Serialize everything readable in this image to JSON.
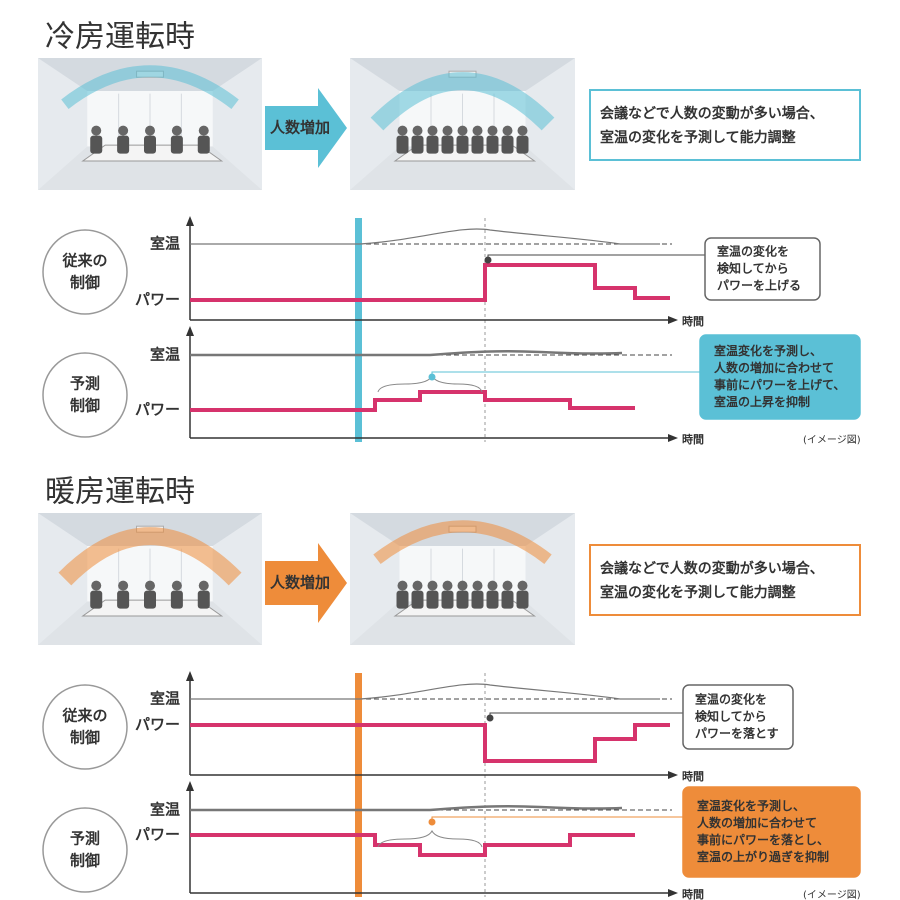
{
  "sections": [
    {
      "title": "冷房運転時",
      "accent": "#5bc0d6",
      "arrow_label": "人数増加",
      "callout": [
        "会議などで人数の変動が多い場合、",
        "室温の変化を予測して能力調整"
      ],
      "conventional": {
        "label": [
          "従来の",
          "制御"
        ],
        "temp": "室温",
        "power": "パワー",
        "note": [
          "室温の変化を",
          "検知してから",
          "パワーを上げる"
        ],
        "time": "時間"
      },
      "predictive": {
        "label": [
          "予測",
          "制御"
        ],
        "temp": "室温",
        "power": "パワー",
        "note": [
          "室温変化を予測し、",
          "人数の増加に合わせて",
          "事前にパワーを上げて、",
          "室温の上昇を抑制"
        ],
        "time": "時間"
      },
      "image_note": "(イメージ図)"
    },
    {
      "title": "暖房運転時",
      "accent": "#ee8c3a",
      "arrow_label": "人数増加",
      "callout": [
        "会議などで人数の変動が多い場合、",
        "室温の変化を予測して能力調整"
      ],
      "conventional": {
        "label": [
          "従来の",
          "制御"
        ],
        "temp": "室温",
        "power": "パワー",
        "note": [
          "室温の変化を",
          "検知してから",
          "パワーを落とす"
        ],
        "time": "時間"
      },
      "predictive": {
        "label": [
          "予測",
          "制御"
        ],
        "temp": "室温",
        "power": "パワー",
        "note": [
          "室温変化を予測し、",
          "人数の増加に合わせて",
          "事前にパワーを落とし、",
          "室温の上がり過ぎを抑制"
        ],
        "time": "時間"
      },
      "image_note": "(イメージ図)"
    }
  ]
}
